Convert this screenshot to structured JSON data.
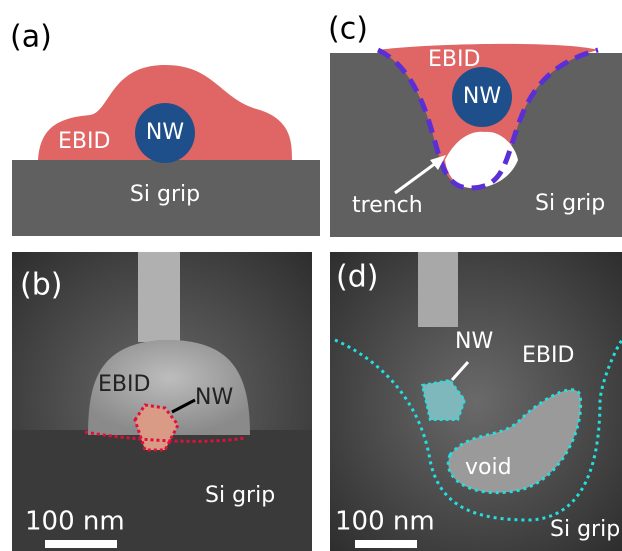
{
  "panels": [
    {
      "label": "(a)",
      "ebid": "EBID",
      "nw": "NW",
      "substrate": "Si grip"
    },
    {
      "label": "(b)",
      "ebid": "EBID",
      "nw": "NW",
      "substrate": "Si grip",
      "scale": "100 nm"
    },
    {
      "label": "(c)",
      "ebid": "EBID",
      "nw": "NW",
      "substrate": "Si grip",
      "trench": "trench"
    },
    {
      "label": "(d)",
      "ebid": "EBID",
      "nw": "NW",
      "substrate": "Si grip",
      "void": "void",
      "scale": "100 nm"
    }
  ]
}
